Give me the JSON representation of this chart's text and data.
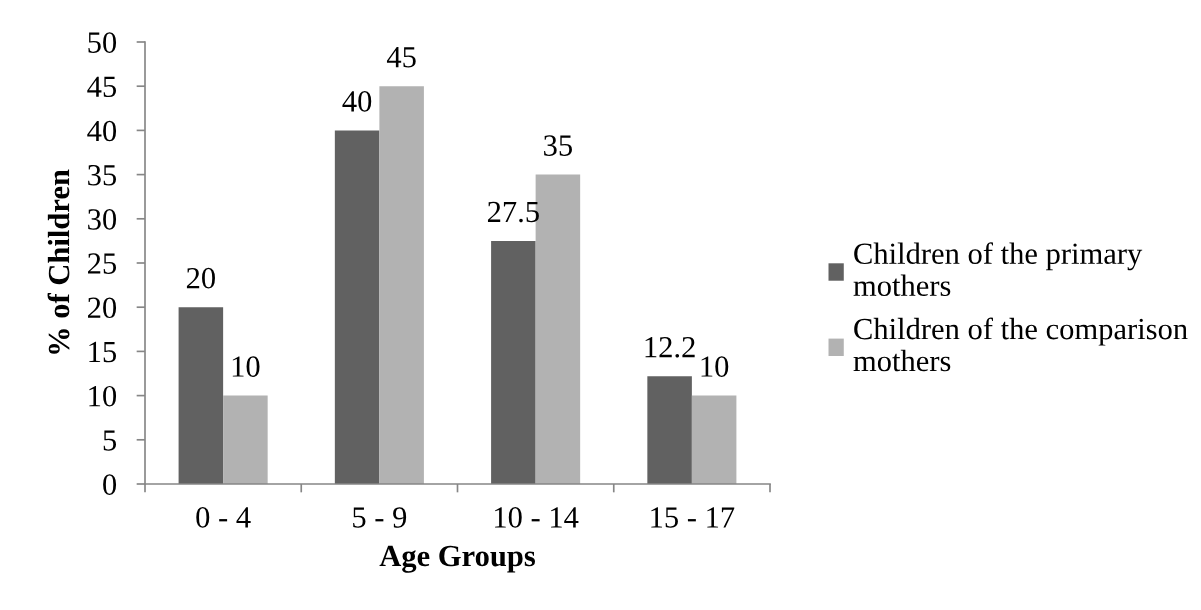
{
  "chart_data": {
    "type": "bar",
    "xlabel": "Age Groups",
    "ylabel": "% of Children",
    "categories": [
      "0 - 4",
      "5 - 9",
      "10 - 14",
      "15 - 17"
    ],
    "series": [
      {
        "name": "Children of the primary mothers",
        "color": "#616161",
        "values": [
          20,
          40,
          27.5,
          12.2
        ]
      },
      {
        "name": "Children of the comparison mothers",
        "color": "#b2b2b2",
        "values": [
          10,
          45,
          35,
          10
        ]
      }
    ],
    "ylim": [
      0,
      50
    ],
    "yticks": [
      0,
      5,
      10,
      15,
      20,
      25,
      30,
      35,
      40,
      45,
      50
    ],
    "data_labels": true,
    "grid": false,
    "legend": "right"
  }
}
